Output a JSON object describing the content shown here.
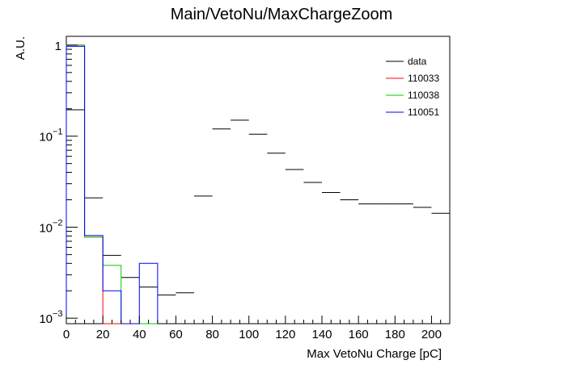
{
  "chart_data": {
    "type": "histogram",
    "title": "Main/VetoNu/MaxChargeZoom",
    "xlabel": "Max VetoNu Charge [pC]",
    "ylabel": "A.U.",
    "xlim": [
      0,
      210
    ],
    "ylim": [
      0.00087,
      1.25
    ],
    "yscale": "log",
    "grid": false,
    "legend_position": "top-right",
    "x_ticks": [
      {
        "value": 0,
        "label": "0"
      },
      {
        "value": 20,
        "label": "20"
      },
      {
        "value": 40,
        "label": "40"
      },
      {
        "value": 60,
        "label": "60"
      },
      {
        "value": 80,
        "label": "80"
      },
      {
        "value": 100,
        "label": "100"
      },
      {
        "value": 120,
        "label": "120"
      },
      {
        "value": 140,
        "label": "140"
      },
      {
        "value": 160,
        "label": "160"
      },
      {
        "value": 180,
        "label": "180"
      },
      {
        "value": 200,
        "label": "200"
      }
    ],
    "y_ticks": [
      {
        "value": 1,
        "label": "1"
      },
      {
        "value": 0.1,
        "label": "10",
        "exp": "−1"
      },
      {
        "value": 0.01,
        "label": "10",
        "exp": "−2"
      },
      {
        "value": 0.001,
        "label": "10",
        "exp": "−3"
      }
    ],
    "series": [
      {
        "name": "data",
        "color": "#000000",
        "draw": "markers",
        "bin_edges": [
          0,
          10,
          20,
          30,
          40,
          50,
          60,
          70,
          80,
          90,
          100,
          110,
          120,
          130,
          140,
          150,
          160,
          170,
          180,
          190,
          200,
          210
        ],
        "values": [
          0.195,
          0.021,
          0.0049,
          0.0028,
          0.0022,
          0.0018,
          0.0019,
          0.022,
          0.12,
          0.15,
          0.105,
          0.065,
          0.043,
          0.031,
          0.024,
          0.02,
          0.018,
          0.018,
          0.018,
          0.0165,
          0.0142
        ]
      },
      {
        "name": "110033",
        "color": "#ff0000",
        "draw": "steps",
        "bin_edges": [
          0,
          10,
          20,
          30,
          40,
          50
        ],
        "values": [
          1.0,
          0.0078,
          0.0,
          0.0,
          0.0
        ]
      },
      {
        "name": "110038",
        "color": "#00cc00",
        "draw": "steps",
        "bin_edges": [
          0,
          10,
          20,
          30,
          40,
          50
        ],
        "values": [
          1.0,
          0.0078,
          0.0038,
          0.0,
          0.0
        ]
      },
      {
        "name": "110051",
        "color": "#0000ff",
        "draw": "steps",
        "bin_edges": [
          0,
          10,
          20,
          30,
          40,
          50
        ],
        "values": [
          0.97,
          0.0081,
          0.002,
          0.0,
          0.004
        ]
      }
    ]
  }
}
